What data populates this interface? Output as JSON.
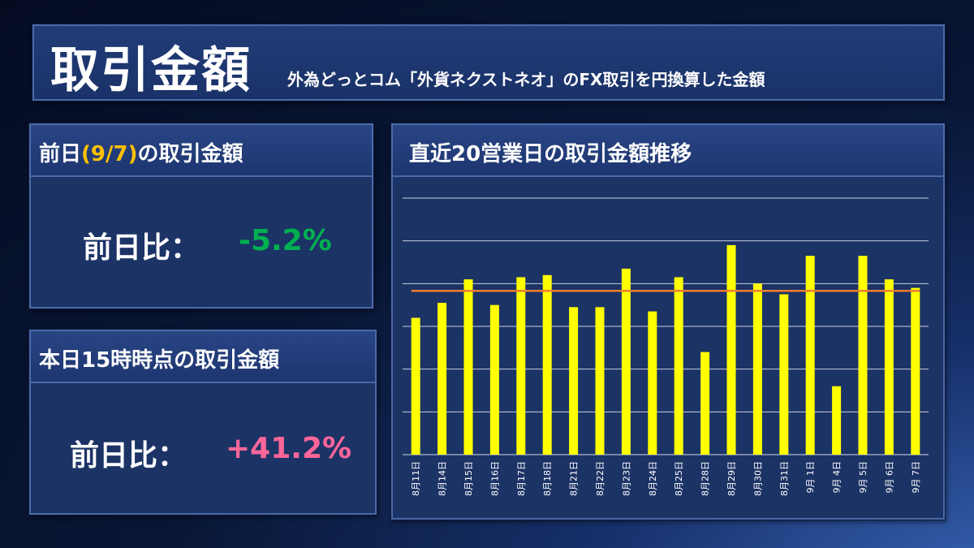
{
  "header": {
    "title": "取引金額",
    "subtitle": "外為どっとコム「外貨ネクストネオ」のFX取引を円換算した金額"
  },
  "prev_day_card": {
    "title_prefix": "前日",
    "title_date": "(9/7)",
    "title_suffix": "の取引金額",
    "label": "前日比：",
    "value": "-5.2%",
    "value_color": "#00b050"
  },
  "today_card": {
    "title": "本日15時時点の取引金額",
    "label": "前日比：",
    "value": "+41.2%",
    "value_color": "#ff6699"
  },
  "chart_panel": {
    "title": "直近20営業日の取引金額推移"
  },
  "chart_data": {
    "type": "bar",
    "categories": [
      "8月11日",
      "8月14日",
      "8月15日",
      "8月16日",
      "8月17日",
      "8月18日",
      "8月21日",
      "8月22日",
      "8月23日",
      "8月24日",
      "8月25日",
      "8月28日",
      "8月29日",
      "8月30日",
      "8月31日",
      "9月 1日",
      "9月 4日",
      "9月 5日",
      "9月 6日",
      "9月 7日"
    ],
    "values": [
      3.2,
      3.55,
      4.1,
      3.5,
      4.15,
      4.2,
      3.45,
      3.45,
      4.35,
      3.35,
      4.15,
      2.4,
      4.9,
      4.0,
      3.75,
      4.65,
      1.6,
      4.65,
      4.1,
      3.9
    ],
    "average_line": 3.83,
    "ylim": [
      0,
      6
    ],
    "grid": true,
    "bar_color": "#ffff00",
    "average_color": "#ed7d31"
  }
}
